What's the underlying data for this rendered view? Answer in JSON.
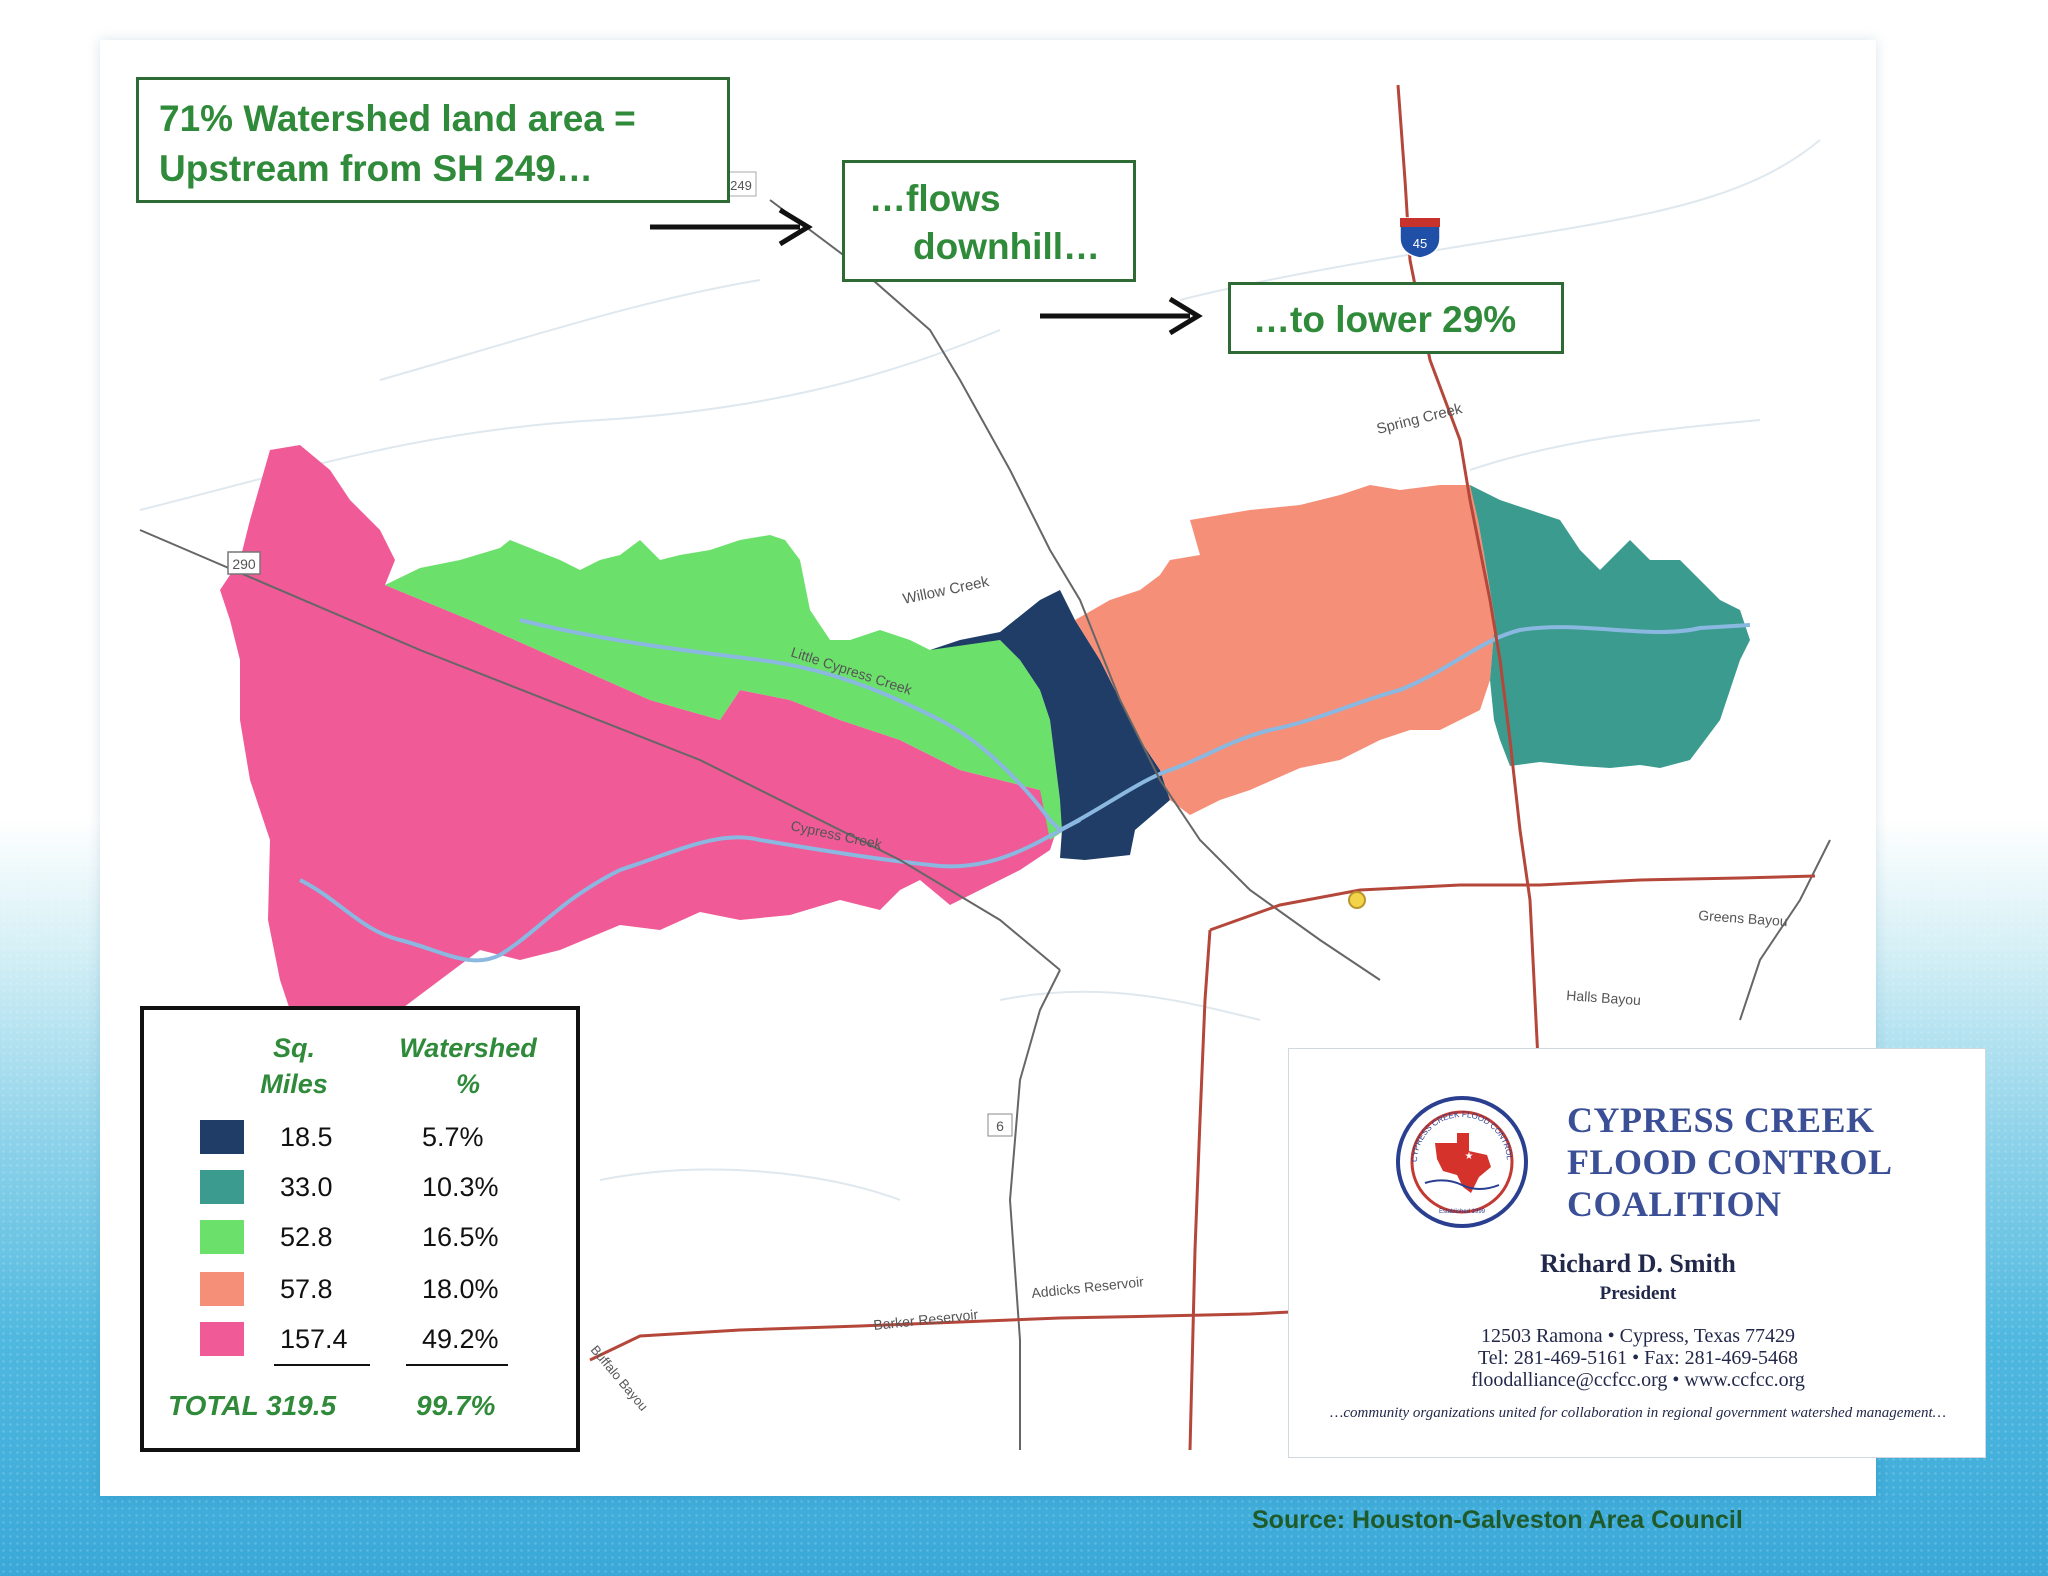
{
  "callouts": {
    "upstream_line1": "71% Watershed land area =",
    "upstream_line2": "Upstream from SH 249…",
    "flows_line1": "…flows",
    "flows_line2": "downhill…",
    "lower": "…to lower 29%"
  },
  "map_labels": {
    "hwy_290": "290",
    "hwy_249": "249",
    "hwy_6": "6",
    "interstate": "45",
    "spring_creek": "Spring Creek",
    "willow_creek": "Willow Creek",
    "little_cypress_creek": "Little Cypress Creek",
    "cypress_creek": "Cypress Creek",
    "greens_bayou": "Greens Bayou",
    "halls_bayou": "Halls Bayou",
    "addicks_reservoir": "Addicks Reservoir",
    "barker_reservoir": "Barker Reservoir",
    "buffalo_bayou": "Buffalo Bayou"
  },
  "legend": {
    "header_miles_1": "Sq.",
    "header_miles_2": "Miles",
    "header_pct_1": "Watershed",
    "header_pct_2": "%",
    "rows": [
      {
        "color": "#1f3d66",
        "miles": "18.5",
        "pct": "5.7%"
      },
      {
        "color": "#3a9b8e",
        "miles": "33.0",
        "pct": "10.3%"
      },
      {
        "color": "#6be06b",
        "miles": "52.8",
        "pct": "16.5%"
      },
      {
        "color": "#f58f78",
        "miles": "57.8",
        "pct": "18.0%"
      },
      {
        "color": "#ef5a97",
        "miles": "157.4",
        "pct": "49.2%"
      }
    ],
    "total_label": "TOTAL 319.5",
    "total_pct": "99.7%"
  },
  "card": {
    "org_line1": "CYPRESS CREEK",
    "org_line2": "FLOOD CONTROL",
    "org_line3": "COALITION",
    "seal_text": "CYPRESS CREEK FLOOD CONTROL COALITION",
    "seal_est": "Established 1999",
    "name": "Richard D. Smith",
    "title": "President",
    "address": "12503 Ramona • Cypress, Texas 77429",
    "phone": "Tel: 281-469-5161 • Fax: 281-469-5468",
    "web": "floodalliance@ccfcc.org • www.ccfcc.org",
    "tagline": "…community organizations united for collaboration in regional government watershed management…"
  },
  "source": "Source: Houston-Galveston Area Council",
  "colors": {
    "callout_text": "#2f8a3a",
    "dark_blue": "#1f3d66",
    "teal": "#3a9b8e",
    "green": "#6be06b",
    "salmon": "#f58f78",
    "pink": "#ef5a97",
    "river": "#8ab8e0",
    "road": "#b4473a"
  }
}
